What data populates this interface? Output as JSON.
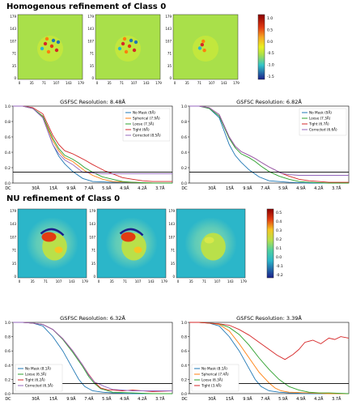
{
  "sections": [
    {
      "title": "Homogenous refinement of Class 0",
      "maps": {
        "y_ticks": [
          "179",
          "143",
          "107",
          "71",
          "35",
          "0"
        ],
        "x_ticks": [
          "0",
          "35",
          "71",
          "107",
          "143",
          "179"
        ],
        "colorbar_ticks": [
          "1.0",
          "0.5",
          "0.0",
          "-0.5",
          "-1.0",
          "-1.5"
        ],
        "background_color": "#a9e04a"
      },
      "chart_data": [
        {
          "type": "line",
          "title": "GSFSC Resolution: 8.48Å",
          "x_ticks": [
            "DC",
            "30Å",
            "15Å",
            "9.9Å",
            "7.4Å",
            "5.9Å",
            "4.9Å",
            "4.2Å",
            "3.7Å"
          ],
          "y_ticks": [
            "0.0",
            "0.2",
            "0.4",
            "0.6",
            "0.8",
            "1.0"
          ],
          "ylim": [
            0,
            1
          ],
          "threshold": 0.143,
          "legend_position": "top-right",
          "series": [
            {
              "name": "No Mask (9Å)",
              "color": "#1f77b4",
              "x": [
                0,
                0.5,
                1,
                1.5,
                2,
                2.3,
                2.6,
                3,
                3.5,
                4,
                5,
                6,
                7,
                8
              ],
              "y": [
                1.0,
                1.0,
                0.97,
                0.85,
                0.5,
                0.35,
                0.25,
                0.15,
                0.06,
                0.02,
                0.01,
                0.01,
                0.0,
                0.0
              ]
            },
            {
              "name": "Spherical (7.9Å)",
              "color": "#ff7f0e",
              "x": [
                0,
                0.5,
                1,
                1.5,
                2,
                2.3,
                2.6,
                3,
                3.3,
                3.6,
                4,
                4.5,
                5,
                6,
                7,
                8
              ],
              "y": [
                1.0,
                1.0,
                0.97,
                0.86,
                0.55,
                0.42,
                0.33,
                0.28,
                0.22,
                0.16,
                0.1,
                0.05,
                0.02,
                0.01,
                0.0,
                0.0
              ]
            },
            {
              "name": "Loose (7.3Å)",
              "color": "#2ca02c",
              "x": [
                0,
                0.5,
                1,
                1.5,
                2,
                2.3,
                2.6,
                3,
                3.3,
                3.6,
                4,
                4.5,
                5,
                5.5,
                6,
                7,
                8
              ],
              "y": [
                1.0,
                1.0,
                0.97,
                0.87,
                0.58,
                0.45,
                0.36,
                0.31,
                0.26,
                0.2,
                0.14,
                0.08,
                0.05,
                0.02,
                0.01,
                0.0,
                0.0
              ]
            },
            {
              "name": "Tight (6Å)",
              "color": "#d62728",
              "x": [
                0,
                0.5,
                1,
                1.5,
                2,
                2.3,
                2.6,
                3,
                3.3,
                3.6,
                4,
                4.3,
                4.6,
                5,
                5.5,
                6,
                6.5,
                7,
                7.5,
                8
              ],
              "y": [
                1.0,
                1.0,
                0.98,
                0.9,
                0.62,
                0.5,
                0.42,
                0.38,
                0.34,
                0.3,
                0.24,
                0.2,
                0.16,
                0.12,
                0.07,
                0.05,
                0.03,
                0.02,
                0.02,
                0.02
              ]
            },
            {
              "name": "Corrected (8.5Å)",
              "color": "#9467bd",
              "x": [
                0,
                0.5,
                1,
                1.5,
                2,
                2.3,
                2.6,
                3,
                3.2,
                3.5,
                4,
                4.5,
                5,
                6,
                7,
                8
              ],
              "y": [
                1.0,
                1.0,
                0.97,
                0.85,
                0.5,
                0.38,
                0.3,
                0.24,
                0.2,
                0.14,
                0.13,
                0.12,
                0.12,
                0.12,
                0.12,
                0.12
              ]
            }
          ]
        },
        {
          "type": "line",
          "title": "GSFSC Resolution: 6.82Å",
          "x_ticks": [
            "DC",
            "30Å",
            "15Å",
            "9.9Å",
            "7.4Å",
            "5.9Å",
            "4.9Å",
            "4.2Å",
            "3.7Å"
          ],
          "y_ticks": [
            "0.0",
            "0.2",
            "0.4",
            "0.6",
            "0.8",
            "1.0"
          ],
          "ylim": [
            0,
            1
          ],
          "threshold": 0.143,
          "legend_position": "top-right",
          "series": [
            {
              "name": "No Mask (9Å)",
              "color": "#1f77b4",
              "x": [
                0,
                0.5,
                1,
                1.5,
                2,
                2.3,
                2.6,
                3,
                3.5,
                4,
                5,
                6,
                7,
                8
              ],
              "y": [
                1.0,
                1.0,
                0.97,
                0.85,
                0.5,
                0.36,
                0.27,
                0.17,
                0.08,
                0.03,
                0.01,
                0.0,
                0.0,
                0.0
              ]
            },
            {
              "name": "Loose (7.3Å)",
              "color": "#2ca02c",
              "x": [
                0,
                0.5,
                1,
                1.5,
                2,
                2.3,
                2.6,
                3,
                3.3,
                3.6,
                4,
                4.5,
                5,
                5.5,
                6,
                7,
                8
              ],
              "y": [
                1.0,
                1.0,
                0.97,
                0.87,
                0.58,
                0.46,
                0.38,
                0.33,
                0.28,
                0.22,
                0.15,
                0.09,
                0.05,
                0.02,
                0.01,
                0.0,
                0.0
              ]
            },
            {
              "name": "Tight (6.7Å)",
              "color": "#d62728",
              "x": [
                0,
                0.5,
                1,
                1.5,
                2,
                2.3,
                2.6,
                3,
                3.3,
                3.6,
                4,
                4.3,
                4.6,
                5,
                5.5,
                6,
                6.5,
                7,
                8
              ],
              "y": [
                1.0,
                1.0,
                0.98,
                0.89,
                0.6,
                0.48,
                0.41,
                0.36,
                0.32,
                0.27,
                0.21,
                0.17,
                0.13,
                0.09,
                0.05,
                0.03,
                0.02,
                0.01,
                0.01
              ]
            },
            {
              "name": "Corrected (6.6Å)",
              "color": "#9467bd",
              "x": [
                0,
                0.5,
                1,
                1.5,
                2,
                2.3,
                2.6,
                3,
                3.3,
                3.6,
                4,
                4.3,
                4.6,
                5,
                5.5,
                6,
                6.5,
                7,
                8
              ],
              "y": [
                1.0,
                1.0,
                0.98,
                0.89,
                0.6,
                0.48,
                0.41,
                0.36,
                0.32,
                0.27,
                0.21,
                0.17,
                0.13,
                0.11,
                0.1,
                0.1,
                0.1,
                0.1,
                0.1
              ]
            }
          ]
        }
      ]
    },
    {
      "title": "NU refinement of Class 0",
      "maps": {
        "y_ticks": [
          "179",
          "143",
          "107",
          "71",
          "35",
          "0"
        ],
        "x_ticks": [
          "0",
          "35",
          "71",
          "107",
          "143",
          "179"
        ],
        "colorbar_ticks": [
          "0.5",
          "0.4",
          "0.3",
          "0.2",
          "0.1",
          "0.0",
          "-0.1",
          "-0.2"
        ],
        "background_color": "#2bb6c9"
      },
      "chart_data": [
        {
          "type": "line",
          "title": "GSFSC Resolution: 6.32Å",
          "x_ticks": [
            "DC",
            "30Å",
            "15Å",
            "9.9Å",
            "7.4Å",
            "5.9Å",
            "4.9Å",
            "4.2Å",
            "3.7Å"
          ],
          "y_ticks": [
            "0.0",
            "0.2",
            "0.4",
            "0.6",
            "0.8",
            "1.0"
          ],
          "ylim": [
            0,
            1
          ],
          "threshold": 0.143,
          "legend_position": "bottom-left",
          "series": [
            {
              "name": "No Mask (8.1Å)",
              "color": "#1f77b4",
              "x": [
                0,
                0.5,
                1,
                1.5,
                2,
                2.5,
                3,
                3.3,
                3.6,
                4,
                4.5,
                5,
                6,
                7,
                8
              ],
              "y": [
                1.0,
                1.0,
                0.99,
                0.95,
                0.8,
                0.6,
                0.35,
                0.2,
                0.1,
                0.04,
                0.02,
                0.01,
                0.0,
                0.0,
                0.0
              ]
            },
            {
              "name": "Loose (6.3Å)",
              "color": "#2ca02c",
              "x": [
                0,
                0.5,
                1,
                1.5,
                2,
                2.5,
                3,
                3.5,
                3.8,
                4.1,
                4.4,
                5,
                6,
                7,
                8
              ],
              "y": [
                1.0,
                1.0,
                0.99,
                0.97,
                0.9,
                0.76,
                0.58,
                0.38,
                0.24,
                0.14,
                0.07,
                0.02,
                0.01,
                0.0,
                0.0
              ]
            },
            {
              "name": "Tight (6.2Å)",
              "color": "#d62728",
              "x": [
                0,
                0.5,
                1,
                1.5,
                2,
                2.5,
                3,
                3.5,
                3.8,
                4.1,
                4.4,
                4.8,
                5,
                5.5,
                6,
                7,
                8
              ],
              "y": [
                1.0,
                1.0,
                0.99,
                0.97,
                0.9,
                0.77,
                0.6,
                0.4,
                0.27,
                0.16,
                0.08,
                0.05,
                0.05,
                0.04,
                0.05,
                0.03,
                0.04
              ]
            },
            {
              "name": "Corrected (6.3Å)",
              "color": "#9467bd",
              "x": [
                0,
                0.5,
                1,
                1.5,
                2,
                2.5,
                3,
                3.5,
                3.8,
                4.1,
                4.3,
                4.6,
                5,
                6,
                7,
                8
              ],
              "y": [
                1.0,
                1.0,
                0.99,
                0.97,
                0.9,
                0.77,
                0.6,
                0.4,
                0.26,
                0.16,
                0.14,
                0.1,
                0.06,
                0.04,
                0.04,
                0.04
              ]
            }
          ]
        },
        {
          "type": "line",
          "title": "GSFSC Resolution: 3.39Å",
          "x_ticks": [
            "DC",
            "30Å",
            "15Å",
            "9.9Å",
            "7.4Å",
            "5.9Å",
            "4.9Å",
            "4.2Å",
            "3.7Å"
          ],
          "y_ticks": [
            "0.0",
            "0.2",
            "0.4",
            "0.6",
            "0.8",
            "1.0"
          ],
          "ylim": [
            0,
            1
          ],
          "threshold": 0.143,
          "legend_position": "bottom-left",
          "series": [
            {
              "name": "No Mask (8.1Å)",
              "color": "#1f77b4",
              "x": [
                0,
                0.5,
                1,
                1.5,
                2,
                2.5,
                3,
                3.3,
                3.6,
                4,
                4.5,
                5,
                6,
                7,
                8
              ],
              "y": [
                1.0,
                1.0,
                0.99,
                0.95,
                0.8,
                0.6,
                0.35,
                0.2,
                0.1,
                0.04,
                0.02,
                0.01,
                0.0,
                0.0,
                0.0
              ]
            },
            {
              "name": "Spherical (7.4Å)",
              "color": "#ff7f0e",
              "x": [
                0,
                0.5,
                1,
                1.5,
                2,
                2.5,
                3,
                3.5,
                4,
                4.3,
                4.6,
                5,
                6,
                7,
                8
              ],
              "y": [
                1.0,
                1.0,
                0.99,
                0.97,
                0.88,
                0.7,
                0.5,
                0.3,
                0.15,
                0.08,
                0.04,
                0.02,
                0.01,
                0.0,
                0.0
              ]
            },
            {
              "name": "Loose (6.3Å)",
              "color": "#2ca02c",
              "x": [
                0,
                0.5,
                1,
                1.5,
                2,
                2.5,
                3,
                3.5,
                4,
                4.5,
                5,
                5.5,
                6,
                6.5,
                7,
                8
              ],
              "y": [
                1.0,
                1.0,
                0.99,
                0.98,
                0.93,
                0.83,
                0.68,
                0.5,
                0.34,
                0.2,
                0.1,
                0.05,
                0.02,
                0.01,
                0.01,
                0.0
              ]
            },
            {
              "name": "Tight (3.4Å)",
              "color": "#d62728",
              "x": [
                0,
                0.5,
                1,
                1.5,
                2,
                2.5,
                3,
                3.5,
                4,
                4.4,
                4.8,
                5.2,
                5.5,
                5.8,
                6.2,
                6.6,
                7,
                7.3,
                7.6,
                8
              ],
              "y": [
                1.0,
                1.0,
                0.99,
                0.98,
                0.96,
                0.9,
                0.82,
                0.72,
                0.62,
                0.54,
                0.48,
                0.55,
                0.62,
                0.72,
                0.75,
                0.7,
                0.78,
                0.76,
                0.8,
                0.78
              ]
            }
          ]
        }
      ]
    }
  ]
}
